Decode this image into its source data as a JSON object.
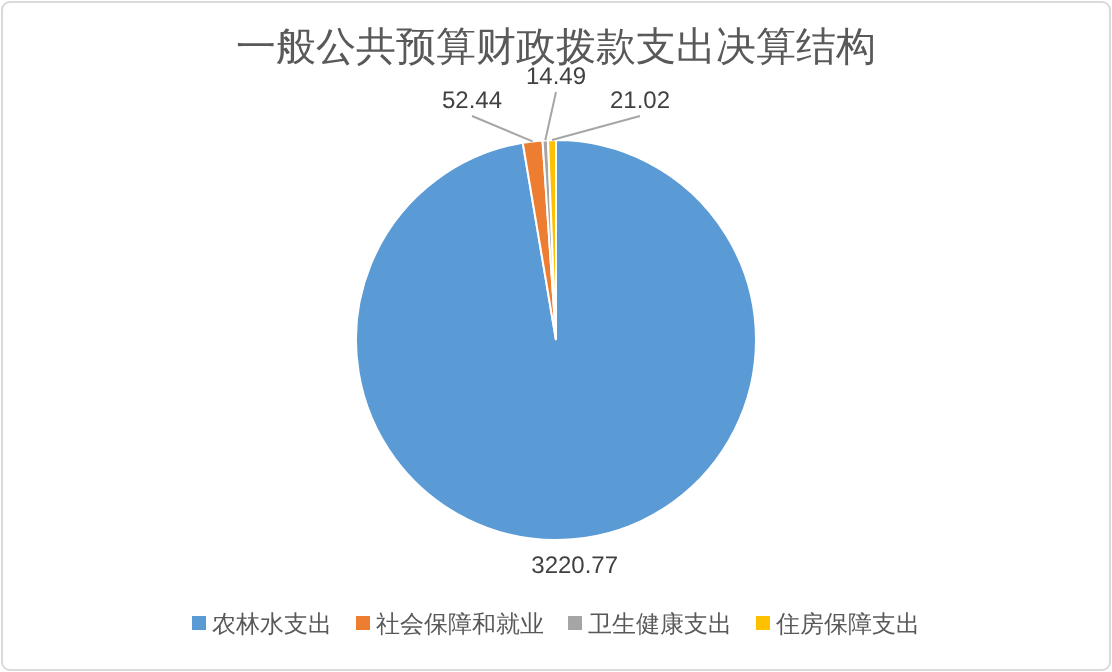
{
  "chart_data": {
    "type": "pie",
    "title": "一般公共预算财政拨款支出决算结构",
    "categories": [
      "农林水支出",
      "社会保障和就业",
      "卫生健康支出",
      "住房保障支出"
    ],
    "values": [
      3220.77,
      52.44,
      14.49,
      21.02
    ],
    "colors": [
      "#5b9bd5",
      "#ed7d31",
      "#a5a5a5",
      "#ffc000"
    ],
    "data_labels": true,
    "legend": "bottom"
  }
}
